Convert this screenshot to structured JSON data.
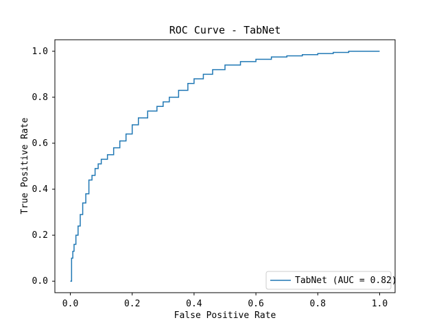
{
  "chart_data": {
    "type": "line",
    "title": "ROC Curve - TabNet",
    "xlabel": "False Positive Rate",
    "ylabel": "True Positive Rate",
    "xlim": [
      -0.05,
      1.05
    ],
    "ylim": [
      -0.05,
      1.05
    ],
    "grid": false,
    "legend_position": "lower-right",
    "xticks": [
      0.0,
      0.2,
      0.4,
      0.6,
      0.8,
      1.0
    ],
    "xtick_labels": [
      "0.0",
      "0.2",
      "0.4",
      "0.6",
      "0.8",
      "1.0"
    ],
    "yticks": [
      0.0,
      0.2,
      0.4,
      0.6,
      0.8,
      1.0
    ],
    "ytick_labels": [
      "0.0",
      "0.2",
      "0.4",
      "0.6",
      "0.8",
      "1.0"
    ],
    "series": [
      {
        "name": "TabNet (AUC = 0.82)",
        "color": "#1f77b4",
        "x": [
          0.0,
          0.004,
          0.008,
          0.012,
          0.018,
          0.025,
          0.032,
          0.04,
          0.05,
          0.06,
          0.07,
          0.08,
          0.09,
          0.1,
          0.12,
          0.14,
          0.16,
          0.18,
          0.2,
          0.22,
          0.25,
          0.28,
          0.3,
          0.32,
          0.35,
          0.38,
          0.4,
          0.43,
          0.46,
          0.5,
          0.55,
          0.6,
          0.65,
          0.7,
          0.75,
          0.8,
          0.85,
          0.9,
          1.0
        ],
        "y": [
          0.0,
          0.1,
          0.13,
          0.16,
          0.2,
          0.24,
          0.29,
          0.34,
          0.38,
          0.44,
          0.46,
          0.49,
          0.51,
          0.53,
          0.55,
          0.58,
          0.61,
          0.64,
          0.68,
          0.71,
          0.74,
          0.76,
          0.78,
          0.8,
          0.83,
          0.86,
          0.88,
          0.9,
          0.92,
          0.94,
          0.955,
          0.965,
          0.975,
          0.98,
          0.985,
          0.99,
          0.995,
          1.0,
          1.0
        ]
      }
    ]
  }
}
